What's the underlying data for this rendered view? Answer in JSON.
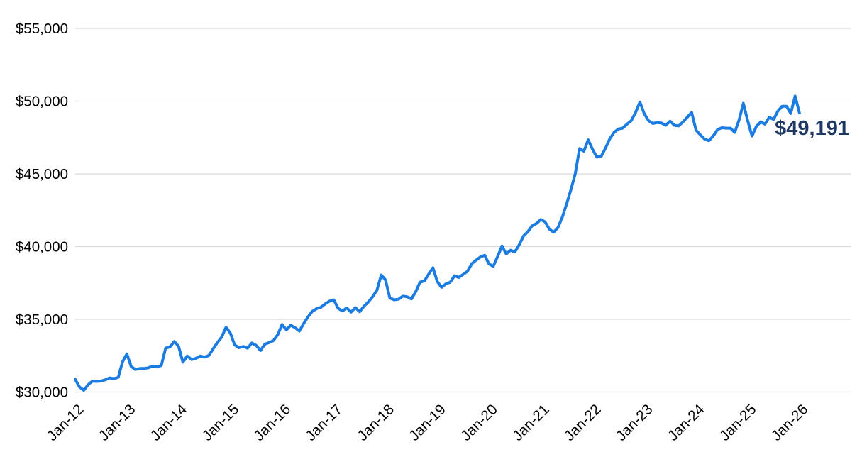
{
  "chart_data": {
    "type": "line",
    "title": "",
    "legend": "none",
    "grid": true,
    "end_label": "$49,191",
    "final_value": 49191,
    "y_axis": {
      "range": [
        30000,
        55000
      ],
      "ticks": [
        {
          "label": "$30,000",
          "value": 30000
        },
        {
          "label": "$35,000",
          "value": 35000
        },
        {
          "label": "$40,000",
          "value": 40000
        },
        {
          "label": "$45,000",
          "value": 45000
        },
        {
          "label": "$50,000",
          "value": 50000
        },
        {
          "label": "$55,000",
          "value": 55000
        }
      ]
    },
    "x_axis": {
      "tick_labels": [
        "Jan-12",
        "Jan-13",
        "Jan-14",
        "Jan-15",
        "Jan-16",
        "Jan-17",
        "Jan-18",
        "Jan-19",
        "Jan-20",
        "Jan-21",
        "Jan-22",
        "Jan-23",
        "Jan-24",
        "Jan-25",
        "Jan-26"
      ],
      "months_per_tick": 12
    },
    "series": [
      {
        "name": "value",
        "start": "Jan-12",
        "end": "Jan-26",
        "frequency": "monthly",
        "values": [
          30890,
          30350,
          30120,
          30500,
          30750,
          30730,
          30760,
          30840,
          30970,
          30920,
          31020,
          32075,
          32620,
          31750,
          31550,
          31620,
          31620,
          31670,
          31780,
          31720,
          31830,
          33020,
          33100,
          33480,
          33150,
          32050,
          32480,
          32235,
          32315,
          32480,
          32400,
          32510,
          32965,
          33400,
          33780,
          34460,
          34050,
          33245,
          33050,
          33130,
          33020,
          33375,
          33210,
          32855,
          33295,
          33405,
          33535,
          33945,
          34650,
          34270,
          34595,
          34430,
          34190,
          34700,
          35160,
          35545,
          35730,
          35830,
          36060,
          36250,
          36340,
          35750,
          35575,
          35785,
          35500,
          35800,
          35520,
          35900,
          36190,
          36550,
          37000,
          38050,
          37700,
          36465,
          36340,
          36380,
          36590,
          36550,
          36400,
          36900,
          37550,
          37640,
          38100,
          38540,
          37600,
          37200,
          37440,
          37550,
          38000,
          37880,
          38090,
          38300,
          38820,
          39065,
          39290,
          39400,
          38800,
          38650,
          39310,
          40040,
          39500,
          39750,
          39630,
          40120,
          40725,
          41020,
          41425,
          41585,
          41860,
          41700,
          41200,
          40990,
          41310,
          42025,
          42935,
          43910,
          45000,
          46740,
          46560,
          47340,
          46700,
          46150,
          46200,
          46750,
          47400,
          47845,
          48090,
          48140,
          48415,
          48660,
          49230,
          49930,
          49150,
          48660,
          48465,
          48530,
          48495,
          48335,
          48625,
          48335,
          48300,
          48575,
          48900,
          49230,
          48010,
          47690,
          47390,
          47280,
          47600,
          48040,
          48170,
          48140,
          48140,
          47850,
          48700,
          49850,
          48650,
          47600,
          48260,
          48575,
          48420,
          48900,
          48740,
          49310,
          49650,
          49650,
          49150,
          50350,
          49191
        ]
      }
    ],
    "colors": {
      "line": "#1b7ce2",
      "end_label": "#1f3864",
      "grid": "#d9d9d9",
      "tick_text": "#000000",
      "background": "#ffffff"
    }
  }
}
